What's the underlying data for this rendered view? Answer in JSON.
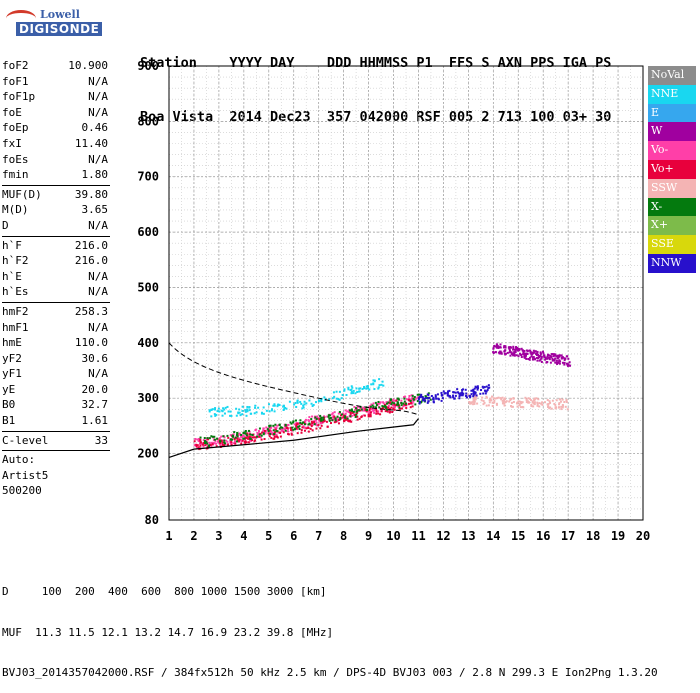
{
  "logo": {
    "line1": "Lowell",
    "line2": "DIGISONDE"
  },
  "header": {
    "line1": "Station    YYYY DAY    DDD HHMMSS P1  FFS S AXN PPS IGA PS",
    "line2": "Boa Vista  2014 Dec23  357 042000 RSF 005 2 713 100 03+ 30"
  },
  "params": [
    {
      "k": "foF2",
      "v": "10.900"
    },
    {
      "k": "foF1",
      "v": "N/A"
    },
    {
      "k": "foF1p",
      "v": "N/A"
    },
    {
      "k": "foE",
      "v": "N/A"
    },
    {
      "k": "foEp",
      "v": "0.46"
    },
    {
      "k": "fxI",
      "v": "11.40"
    },
    {
      "k": "foEs",
      "v": "N/A"
    },
    {
      "k": "fmin",
      "v": "1.80"
    },
    {
      "sep": true
    },
    {
      "k": "MUF(D)",
      "v": "39.80"
    },
    {
      "k": "M(D)",
      "v": "3.65"
    },
    {
      "k": "D",
      "v": "N/A"
    },
    {
      "sep": true
    },
    {
      "k": "h`F",
      "v": "216.0"
    },
    {
      "k": "h`F2",
      "v": "216.0"
    },
    {
      "k": "h`E",
      "v": "N/A"
    },
    {
      "k": "h`Es",
      "v": "N/A"
    },
    {
      "sep": true
    },
    {
      "k": "hmF2",
      "v": "258.3"
    },
    {
      "k": "hmF1",
      "v": "N/A"
    },
    {
      "k": "hmE",
      "v": "110.0"
    },
    {
      "k": "yF2",
      "v": "30.6"
    },
    {
      "k": "yF1",
      "v": "N/A"
    },
    {
      "k": "yE",
      "v": "20.0"
    },
    {
      "k": "B0",
      "v": "32.7"
    },
    {
      "k": "B1",
      "v": "1.61"
    },
    {
      "sep": true
    },
    {
      "k": "C-level",
      "v": "33"
    },
    {
      "sep": true
    },
    {
      "t": "Auto:"
    },
    {
      "t": "Artist5"
    },
    {
      "t": "500200"
    }
  ],
  "legend": [
    {
      "label": "NoVal",
      "color": "#8c8c8c"
    },
    {
      "label": "NNE",
      "color": "#19d7f0"
    },
    {
      "label": "E",
      "color": "#36a7ee"
    },
    {
      "label": "W",
      "color": "#a0009f"
    },
    {
      "label": "Vo-",
      "color": "#ff3fa8"
    },
    {
      "label": "Vo+",
      "color": "#e8003c"
    },
    {
      "label": "SSW",
      "color": "#f4b4b4"
    },
    {
      "label": "X-",
      "color": "#047a0e"
    },
    {
      "label": "X+",
      "color": "#7dbb4a"
    },
    {
      "label": "SSE",
      "color": "#d8d80c"
    },
    {
      "label": "NNW",
      "color": "#2810cc"
    }
  ],
  "footer": {
    "line1": "D     100  200  400  600  800 1000 1500 3000 [km]",
    "line2": "MUF  11.3 11.5 12.1 13.2 14.7 16.9 23.2 39.8 [MHz]",
    "line3": "BVJ03_2014357042000.RSF / 384fx512h 50 kHz 2.5 km / DPS-4D BVJ03 003 / 2.8 N 299.3 E Ion2Png 1.3.20"
  },
  "chart_data": {
    "type": "scatter",
    "xlim": [
      1,
      20
    ],
    "ylim": [
      80,
      900
    ],
    "x_ticks": [
      "1",
      "2",
      "3",
      "4",
      "5",
      "6",
      "7",
      "8",
      "9",
      "10",
      "11",
      "12",
      "13",
      "14",
      "15",
      "16",
      "17",
      "18",
      "19",
      "20"
    ],
    "y_ticks": [
      80,
      200,
      300,
      400,
      500,
      600,
      700,
      800,
      900
    ],
    "grid": true,
    "legend_position": "right",
    "series": [
      {
        "name": "Vo-",
        "color": "#ff3fa8",
        "x": [
          2.0,
          3.0,
          4.0,
          5.0,
          6.0,
          7.0,
          8.0,
          9.0,
          10.0,
          10.9
        ],
        "y": [
          220,
          225,
          232,
          242,
          252,
          262,
          272,
          282,
          292,
          300
        ]
      },
      {
        "name": "Vo+",
        "color": "#e8003c",
        "x": [
          2.0,
          3.5,
          5.0,
          6.5,
          8.0,
          9.5,
          10.8
        ],
        "y": [
          218,
          224,
          236,
          250,
          266,
          282,
          296
        ]
      },
      {
        "name": "X-",
        "color": "#047a0e",
        "x": [
          2.2,
          4.0,
          6.0,
          8.0,
          10.0,
          11.4
        ],
        "y": [
          222,
          234,
          252,
          272,
          292,
          304
        ]
      },
      {
        "name": "W",
        "color": "#a0009f",
        "x": [
          14.0,
          14.5,
          15.0,
          15.5,
          16.0,
          16.5,
          17.0
        ],
        "y": [
          392,
          388,
          384,
          380,
          376,
          372,
          368
        ]
      },
      {
        "name": "NNE",
        "color": "#19d7f0",
        "x": [
          2.5,
          4.0,
          6.0,
          8.0,
          9.5
        ],
        "y": [
          278,
          278,
          290,
          310,
          330
        ]
      },
      {
        "name": "SSW",
        "color": "#f4b4b4",
        "x": [
          13.0,
          14.0,
          15.0,
          16.0,
          17.0
        ],
        "y": [
          300,
          296,
          294,
          292,
          290
        ]
      },
      {
        "name": "NNW",
        "color": "#2810cc",
        "x": [
          11.0,
          12.0,
          13.0,
          13.8
        ],
        "y": [
          300,
          306,
          312,
          318
        ]
      }
    ]
  }
}
